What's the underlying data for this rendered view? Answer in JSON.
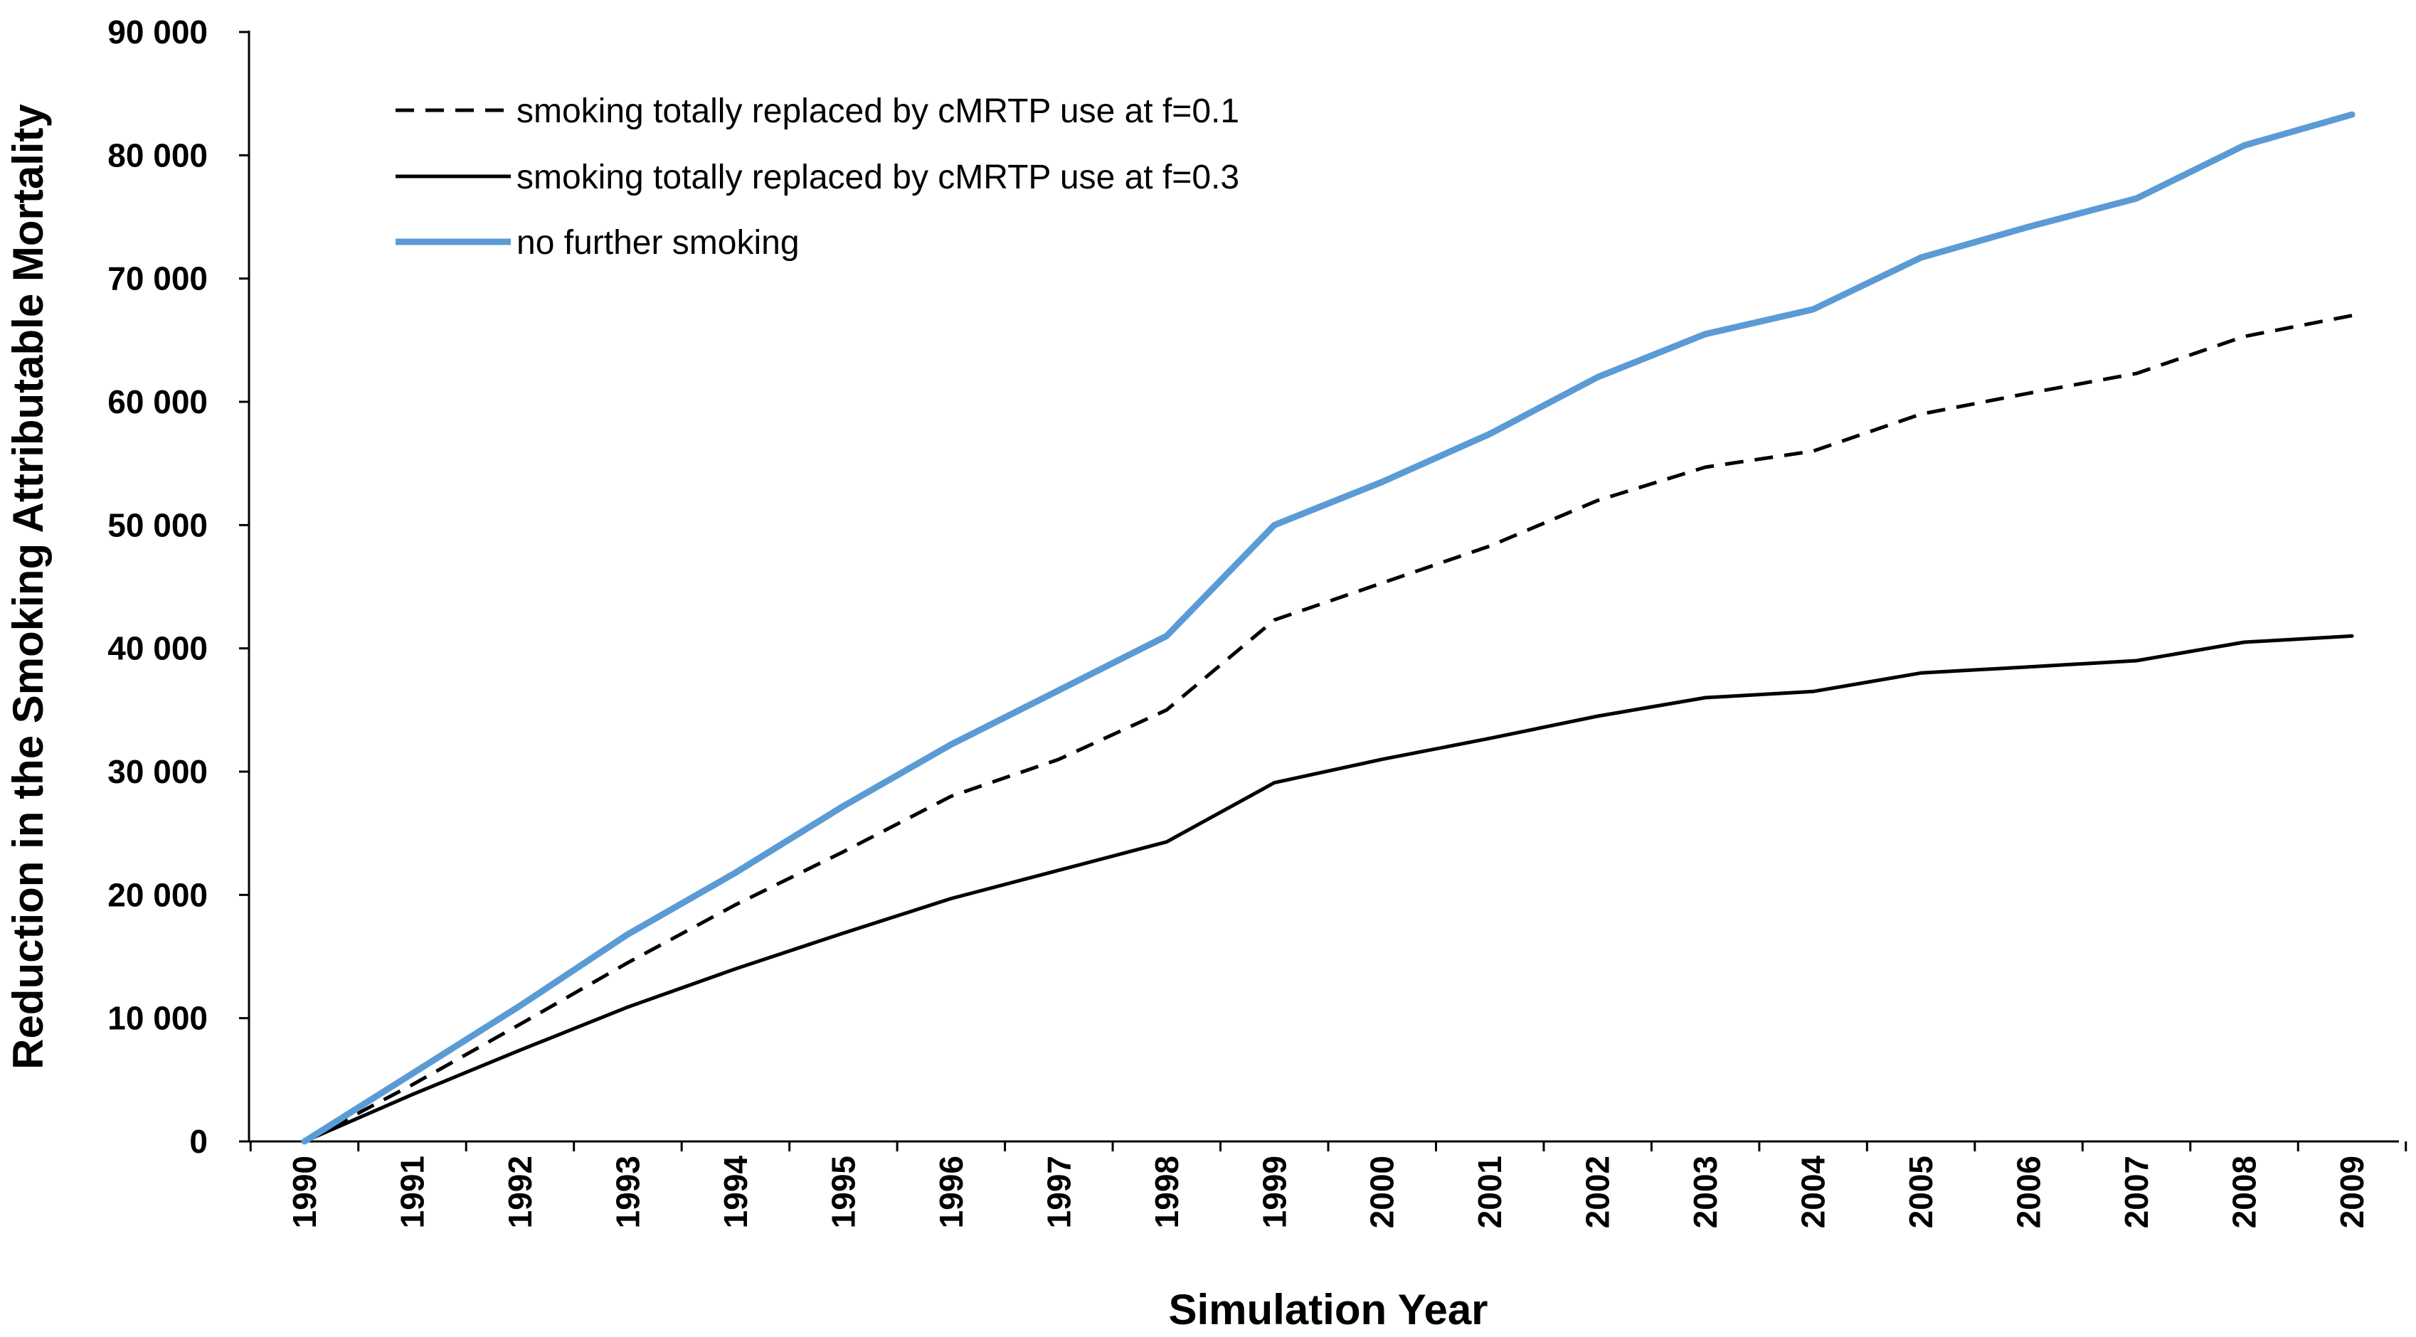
{
  "chart_data": {
    "type": "line",
    "title": "",
    "xlabel": "Simulation  Year",
    "ylabel": "Reduction in the Smoking Attributable Mortality",
    "ylim": [
      0,
      90000
    ],
    "grid": false,
    "legend_position": "top-left",
    "yticks": [
      {
        "value": 0,
        "label": "0"
      },
      {
        "value": 10000,
        "label": "10 000"
      },
      {
        "value": 20000,
        "label": "20 000"
      },
      {
        "value": 30000,
        "label": "30 000"
      },
      {
        "value": 40000,
        "label": "40 000"
      },
      {
        "value": 50000,
        "label": "50 000"
      },
      {
        "value": 60000,
        "label": "60 000"
      },
      {
        "value": 70000,
        "label": "70 000"
      },
      {
        "value": 80000,
        "label": "80 000"
      },
      {
        "value": 90000,
        "label": "90 000"
      }
    ],
    "categories": [
      "1990",
      "1991",
      "1992",
      "1993",
      "1994",
      "1995",
      "1996",
      "1997",
      "1998",
      "1999",
      "2000",
      "2001",
      "2002",
      "2003",
      "2004",
      "2005",
      "2006",
      "2007",
      "2008",
      "2009"
    ],
    "series": [
      {
        "name": "smoking totally replaced by cMRTP use at f=0.1",
        "style": "dashed",
        "color": "#000000",
        "values": [
          0,
          4600,
          9500,
          14500,
          19200,
          23500,
          28000,
          31000,
          35000,
          42300,
          45300,
          48300,
          52000,
          54700,
          56000,
          59000,
          60700,
          62300,
          65300,
          67000
        ]
      },
      {
        "name": "smoking totally replaced by cMRTP use at f=0.3",
        "style": "solid",
        "color": "#000000",
        "values": [
          0,
          3800,
          7400,
          10900,
          14000,
          16900,
          19700,
          22000,
          24300,
          29100,
          31000,
          32700,
          34500,
          36000,
          36500,
          38000,
          38500,
          39000,
          40500,
          41000
        ]
      },
      {
        "name": "no further smoking",
        "style": "solid",
        "color": "#5B9BD5",
        "values": [
          0,
          5500,
          11000,
          16800,
          21800,
          27200,
          32200,
          36600,
          41000,
          50000,
          53500,
          57400,
          62000,
          65500,
          67500,
          71700,
          74200,
          76500,
          80800,
          83300
        ]
      }
    ]
  }
}
